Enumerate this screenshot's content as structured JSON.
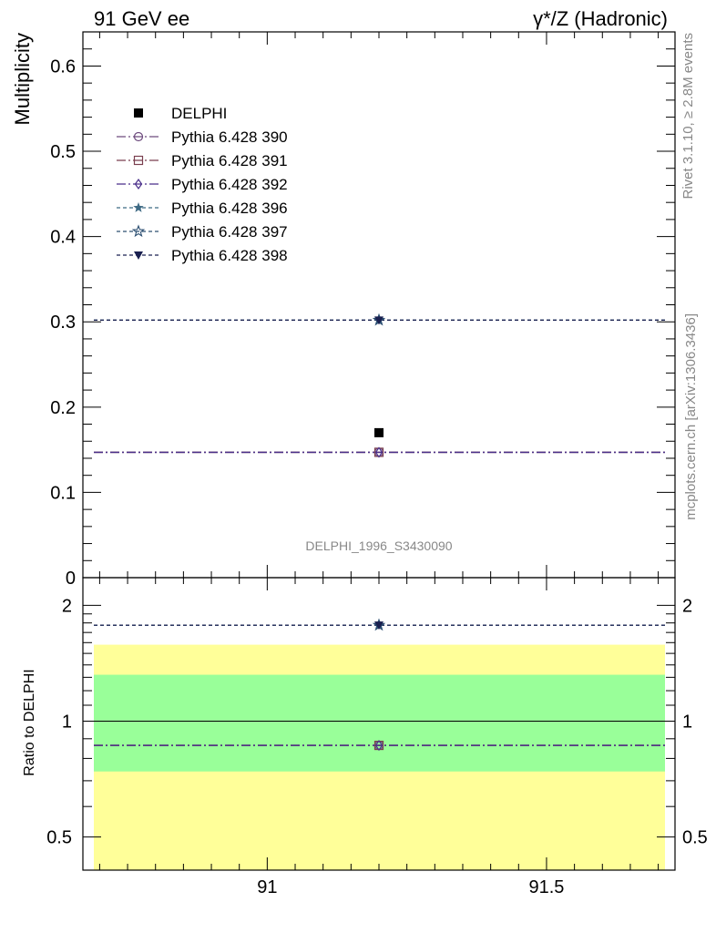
{
  "header": {
    "left": "91 GeV ee",
    "right": "γ*/Z (Hadronic)"
  },
  "side_labels": {
    "rivet": "Rivet 3.1.10, ≥ 2.8M events",
    "mcplots": "mcplots.cern.ch [arXiv:1306.3436]"
  },
  "watermark": "DELPHI_1996_S3430090",
  "chart_data": [
    {
      "type": "scatter",
      "panel": "main",
      "ylabel": "Multiplicity",
      "xlim": [
        90.67,
        91.73
      ],
      "ylim": [
        0,
        0.64
      ],
      "yticks": [
        0,
        0.1,
        0.2,
        0.3,
        0.4,
        0.5,
        0.6
      ],
      "ytick_labels": [
        "0",
        "0.1",
        "0.2",
        "0.3",
        "0.4",
        "0.5",
        "0.6"
      ],
      "legend_position": "top-left",
      "data_series": {
        "name": "DELPHI",
        "x": [
          91.2
        ],
        "y": [
          0.17
        ],
        "color": "#000000",
        "marker": "filled-square"
      },
      "series": [
        {
          "name": "Pythia 6.428 390",
          "x": [
            91.2
          ],
          "y": [
            0.147
          ],
          "color": "#6d4a7d",
          "marker": "open-circle",
          "dash": "10,3,2,3"
        },
        {
          "name": "Pythia 6.428 391",
          "x": [
            91.2
          ],
          "y": [
            0.147
          ],
          "color": "#7a3f4f",
          "marker": "open-square",
          "dash": "10,3,2,3"
        },
        {
          "name": "Pythia 6.428 392",
          "x": [
            91.2
          ],
          "y": [
            0.147
          ],
          "color": "#4a2f8a",
          "marker": "open-diamond",
          "dash": "10,3,2,3"
        },
        {
          "name": "Pythia 6.428 396",
          "x": [
            91.2
          ],
          "y": [
            0.302
          ],
          "color": "#3e6a84",
          "marker": "filled-star",
          "dash": "4,3"
        },
        {
          "name": "Pythia 6.428 397",
          "x": [
            91.2
          ],
          "y": [
            0.302
          ],
          "color": "#2c4f72",
          "marker": "open-star",
          "dash": "4,3"
        },
        {
          "name": "Pythia 6.428 398",
          "x": [
            91.2
          ],
          "y": [
            0.302
          ],
          "color": "#1a2050",
          "marker": "filled-triangle-down",
          "dash": "4,3"
        }
      ]
    },
    {
      "type": "scatter",
      "panel": "ratio",
      "ylabel": "Ratio to DELPHI",
      "xlabel": "",
      "xlim": [
        90.67,
        91.73
      ],
      "ylim": [
        0.41,
        2.36
      ],
      "log_y": true,
      "xticks": [
        91,
        91.5
      ],
      "xtick_labels": [
        "91",
        "91.5"
      ],
      "yticks": [
        0.5,
        1,
        2
      ],
      "ytick_labels": [
        "0.5",
        "1",
        "2"
      ],
      "band_yellow": [
        0.41,
        1.58
      ],
      "band_green": [
        0.74,
        1.32
      ],
      "band_colors": {
        "yellow": "#ffff99",
        "green": "#99ff99"
      },
      "series": [
        {
          "name": "Pythia 6.428 390",
          "x": [
            91.2
          ],
          "y": [
            0.865
          ],
          "color": "#6d4a7d",
          "marker": "open-circle",
          "dash": "10,3,2,3"
        },
        {
          "name": "Pythia 6.428 391",
          "x": [
            91.2
          ],
          "y": [
            0.865
          ],
          "color": "#7a3f4f",
          "marker": "open-square",
          "dash": "10,3,2,3"
        },
        {
          "name": "Pythia 6.428 392",
          "x": [
            91.2
          ],
          "y": [
            0.865
          ],
          "color": "#4a2f8a",
          "marker": "open-diamond",
          "dash": "10,3,2,3"
        },
        {
          "name": "Pythia 6.428 396",
          "x": [
            91.2
          ],
          "y": [
            1.776
          ],
          "color": "#3e6a84",
          "marker": "filled-star",
          "dash": "4,3"
        },
        {
          "name": "Pythia 6.428 397",
          "x": [
            91.2
          ],
          "y": [
            1.776
          ],
          "color": "#2c4f72",
          "marker": "open-star",
          "dash": "4,3"
        },
        {
          "name": "Pythia 6.428 398",
          "x": [
            91.2
          ],
          "y": [
            1.776
          ],
          "color": "#1a2050",
          "marker": "filled-triangle-down",
          "dash": "4,3"
        }
      ]
    }
  ]
}
